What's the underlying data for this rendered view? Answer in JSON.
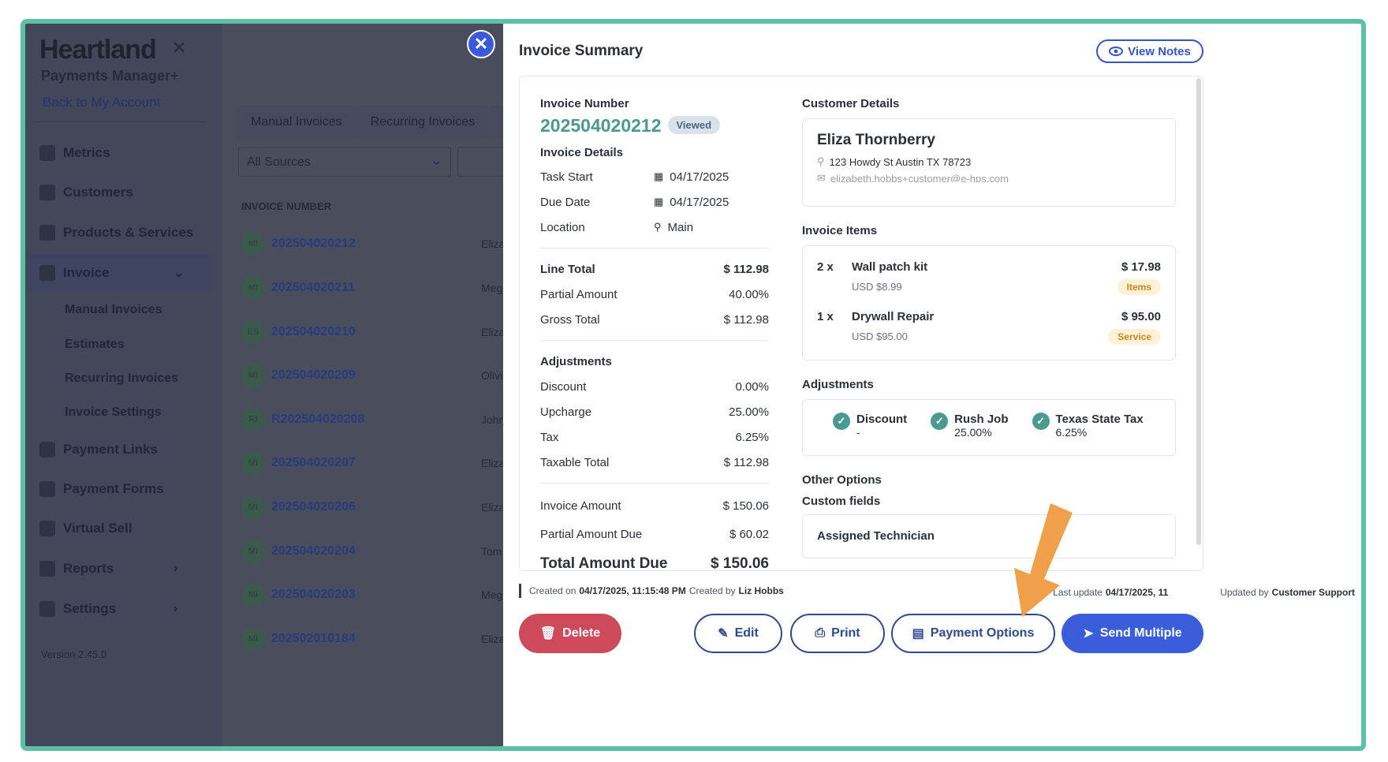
{
  "sidebar": {
    "brand": "Heartland",
    "brand_sub": "Payments Manager+",
    "back_link": "Back to My Account",
    "items": [
      {
        "label": "Metrics"
      },
      {
        "label": "Customers"
      },
      {
        "label": "Products & Services"
      },
      {
        "label": "Invoice"
      },
      {
        "label": "Payment Links"
      },
      {
        "label": "Payment Forms"
      },
      {
        "label": "Virtual Sell"
      },
      {
        "label": "Reports"
      },
      {
        "label": "Settings"
      }
    ],
    "invoice_sub": [
      "Manual Invoices",
      "Estimates",
      "Recurring Invoices",
      "Invoice Settings"
    ],
    "version": "Version 2.45.0"
  },
  "background": {
    "tabs": [
      "Manual Invoices",
      "Recurring Invoices",
      "E"
    ],
    "filter": "All Sources",
    "column_header": "INVOICE NUMBER",
    "rows": [
      {
        "initials": "MI",
        "number": "202504020212",
        "cust": "Eliza"
      },
      {
        "initials": "MI",
        "number": "202504020211",
        "cust": "Meg"
      },
      {
        "initials": "ES",
        "number": "202504020210",
        "cust": "Eliza"
      },
      {
        "initials": "MI",
        "number": "202504020209",
        "cust": "Olivi"
      },
      {
        "initials": "RI",
        "number": "R202504020208",
        "cust": "John"
      },
      {
        "initials": "MI",
        "number": "202504020207",
        "cust": "Eliza"
      },
      {
        "initials": "MI",
        "number": "202504020206",
        "cust": "Eliza"
      },
      {
        "initials": "MI",
        "number": "202504020204",
        "cust": "Tom"
      },
      {
        "initials": "MI",
        "number": "202504020203",
        "cust": "Meg"
      },
      {
        "initials": "MI",
        "number": "202502010184",
        "cust": "Eliza"
      }
    ]
  },
  "modal": {
    "title": "Invoice Summary",
    "view_notes": "View Notes",
    "invoice_number_label": "Invoice Number",
    "invoice_number": "202504020212",
    "status": "Viewed",
    "details_title": "Invoice Details",
    "task_start_label": "Task Start",
    "task_start": "04/17/2025",
    "due_date_label": "Due Date",
    "due_date": "04/17/2025",
    "location_label": "Location",
    "location": "Main",
    "line_total_label": "Line Total",
    "line_total": "$ 112.98",
    "partial_amount_label": "Partial Amount",
    "partial_amount": "40.00%",
    "gross_total_label": "Gross Total",
    "gross_total": "$ 112.98",
    "adjustments_title": "Adjustments",
    "discount_label": "Discount",
    "discount": "0.00%",
    "upcharge_label": "Upcharge",
    "upcharge": "25.00%",
    "tax_label": "Tax",
    "tax": "6.25%",
    "taxable_total_label": "Taxable Total",
    "taxable_total": "$ 112.98",
    "invoice_amount_label": "Invoice Amount",
    "invoice_amount": "$ 150.06",
    "partial_due_label": "Partial Amount Due",
    "partial_due": "$ 60.02",
    "total_due_label": "Total Amount Due",
    "total_due": "$ 150.06",
    "customer_details_title": "Customer Details",
    "customer_name": "Eliza Thornberry",
    "customer_address": "123 Howdy St Austin TX 78723",
    "customer_email": "elizabeth.hobbs+customer@e-hps.com",
    "items_title": "Invoice Items",
    "items": [
      {
        "qty": "2 x",
        "name": "Wall patch kit",
        "unit": "USD $8.99",
        "price": "$ 17.98",
        "tag": "Items"
      },
      {
        "qty": "1 x",
        "name": "Drywall Repair",
        "unit": "USD $95.00",
        "price": "$ 95.00",
        "tag": "Service"
      }
    ],
    "adj_title": "Adjustments",
    "adjustments": [
      {
        "name": "Discount",
        "value": "-"
      },
      {
        "name": "Rush Job",
        "value": "25.00%"
      },
      {
        "name": "Texas State Tax",
        "value": "6.25%"
      }
    ],
    "other_options_title": "Other Options",
    "custom_fields_title": "Custom fields",
    "custom_field": "Assigned Technician",
    "created_prefix": "Created on",
    "created_on": "04/17/2025, 11:15:48 PM",
    "created_by_prefix": "Created by",
    "created_by": "Liz Hobbs",
    "updated_prefix": "Last update",
    "updated_on": "04/17/2025, 11",
    "updated_by_prefix": "Updated by",
    "updated_by": "Customer Support"
  },
  "buttons": {
    "delete": "Delete",
    "edit": "Edit",
    "print": "Print",
    "payment_options": "Payment Options",
    "send_multiple": "Send Multiple"
  },
  "colors": {
    "accent": "#3a5ddb",
    "teal": "#4b9a8f",
    "danger": "#cc4a5a",
    "frame": "#5cc2a7",
    "arrow": "#f0a04b"
  }
}
